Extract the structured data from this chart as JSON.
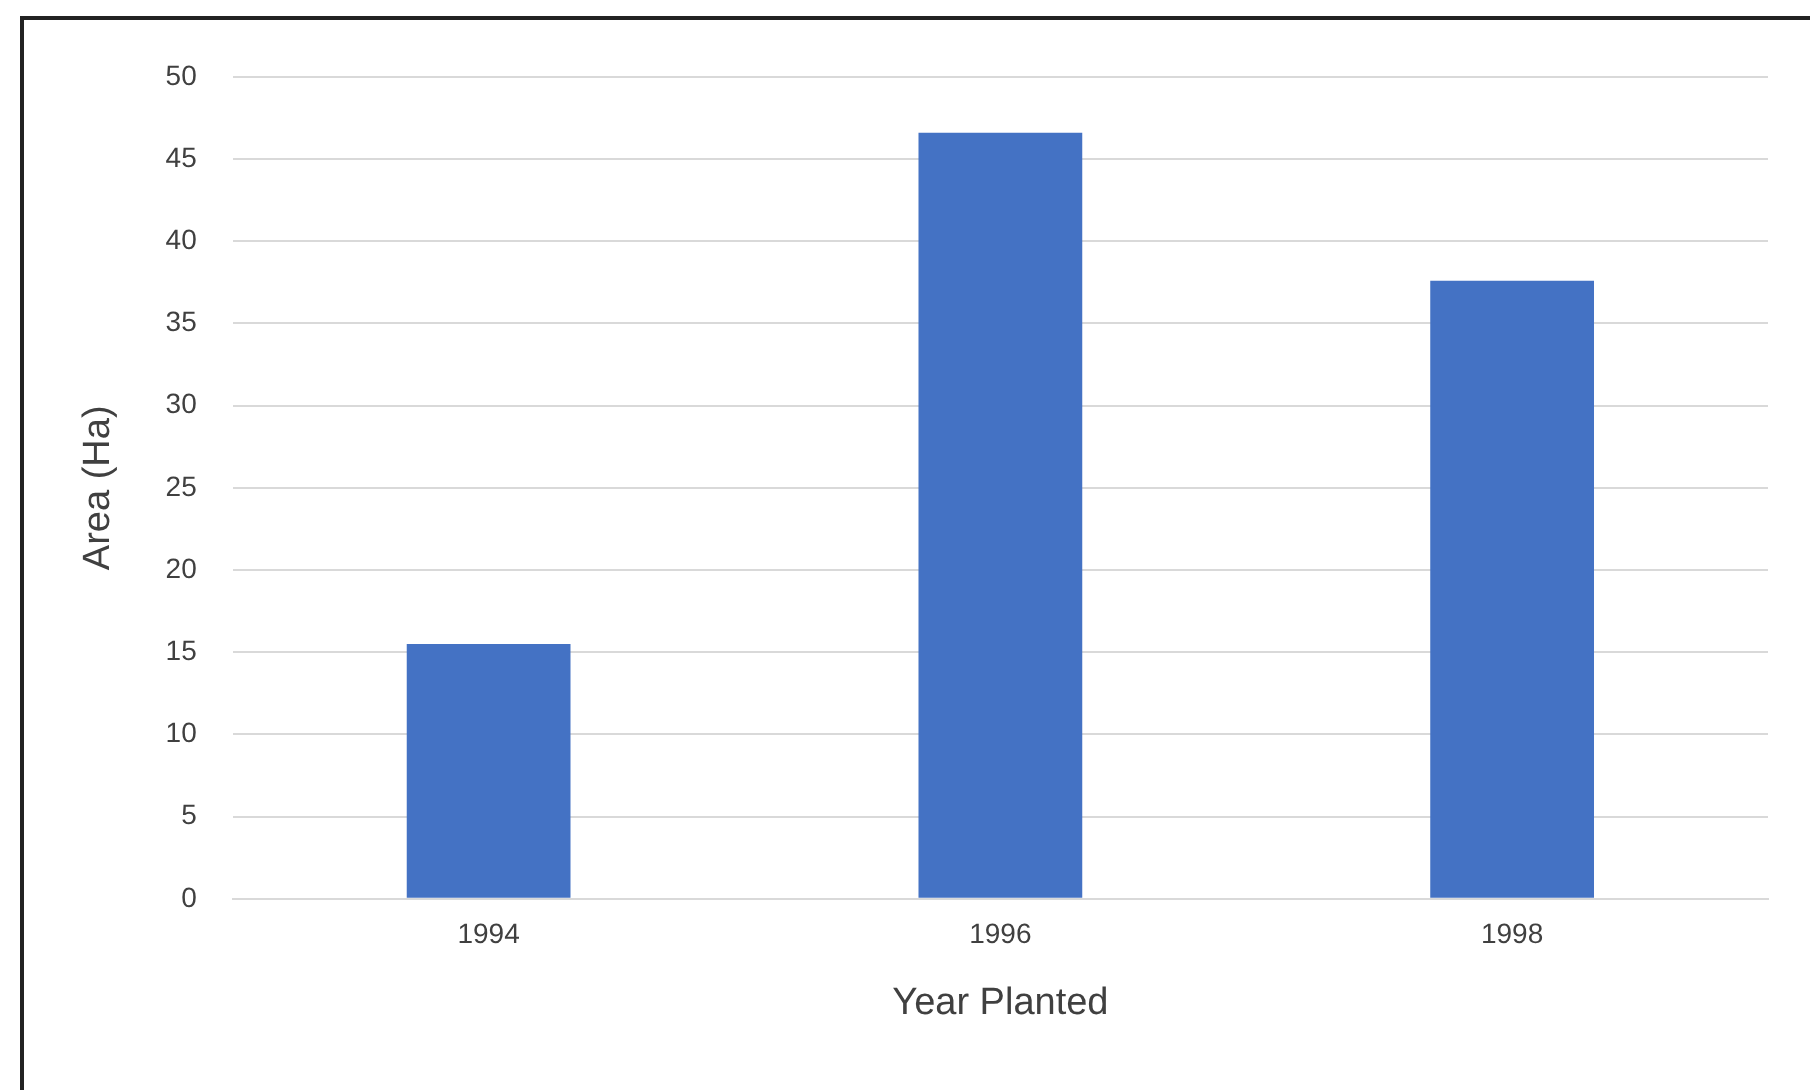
{
  "chart_data": {
    "type": "bar",
    "xlabel": "Year Planted",
    "ylabel": "Area (Ha)",
    "categories": [
      "1994",
      "1996",
      "1998"
    ],
    "values": [
      15.5,
      46.6,
      37.6
    ],
    "color": "#4472c4",
    "ylim": [
      0,
      50
    ],
    "yticks": [
      0,
      5,
      10,
      15,
      20,
      25,
      30,
      35,
      40,
      45,
      50
    ],
    "grid": "y"
  }
}
